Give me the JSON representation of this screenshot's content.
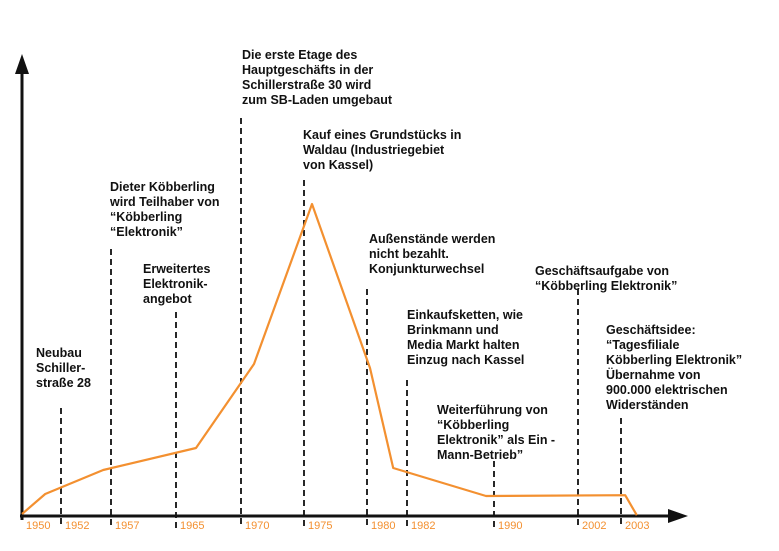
{
  "chart_data": {
    "type": "line",
    "title": "",
    "xlabel": "",
    "ylabel": "",
    "grid": false,
    "colors": {
      "line": "#f39030",
      "axis": "#111111",
      "tick_label": "#f39030",
      "text": "#111111",
      "marker": "#111111"
    },
    "tick_labels": [
      "1950",
      "1952",
      "1957",
      "1965",
      "1970",
      "1975",
      "1980",
      "1982",
      "1990",
      "2002",
      "2003"
    ],
    "points": [
      {
        "x": 1950,
        "y": 0.5
      },
      {
        "x": 1952,
        "y": 5.5
      },
      {
        "x": 1957,
        "y": 11.5
      },
      {
        "x": 1965,
        "y": 17
      },
      {
        "x": 1970,
        "y": 38
      },
      {
        "x": 1975,
        "y": 78
      },
      {
        "x": 1980,
        "y": 37
      },
      {
        "x": 1982,
        "y": 12
      },
      {
        "x": 1990,
        "y": 5
      },
      {
        "x": 2002,
        "y": 5.2
      },
      {
        "x": 2003,
        "y": 0.2
      }
    ],
    "markers": [
      "1952",
      "1957",
      "1965",
      "1970",
      "1975",
      "1980",
      "1982",
      "1990",
      "2002",
      "2003"
    ],
    "annotations": [
      {
        "tick": "1952",
        "lines": [
          "Neubau",
          "Schiller-",
          "straße 28"
        ]
      },
      {
        "tick": "1957",
        "lines": [
          "Dieter Köbberling",
          "wird Teilhaber von",
          "“Köbberling",
          "“Elektronik”"
        ]
      },
      {
        "tick": "1965",
        "lines": [
          "Erweitertes",
          "Elektronik-",
          "angebot"
        ]
      },
      {
        "tick": "1970",
        "lines": [
          "Die erste Etage des",
          "Hauptgeschäfts in der",
          "Schillerstraße 30 wird",
          "zum SB-Laden umgebaut"
        ]
      },
      {
        "tick": "1975",
        "lines": [
          "Kauf eines Grundstücks in",
          "Waldau (Industriegebiet",
          "von Kassel)"
        ]
      },
      {
        "tick": "1980",
        "lines": [
          "Außenstände werden",
          "nicht bezahlt.",
          "Konjunkturwechsel"
        ]
      },
      {
        "tick": "1982",
        "lines": [
          "Einkaufsketten, wie",
          "Brinkmann und",
          "Media Markt halten",
          "Einzug nach Kassel"
        ]
      },
      {
        "tick": "1990",
        "lines": [
          "Weiterführung von",
          "“Köbberling",
          "Elektronik” als Ein -",
          "Mann-Betrieb”"
        ]
      },
      {
        "tick": "2002",
        "lines": [
          "Geschäftsaufgabe von",
          "“Köbberling Elektronik”"
        ]
      },
      {
        "tick": "2003",
        "lines": [
          "Geschäftsidee:",
          "“Tagesfiliale",
          "Köbberling Elektronik”",
          "Übernahme von",
          "900.000 elektrischen",
          "Widerständen"
        ]
      }
    ]
  }
}
